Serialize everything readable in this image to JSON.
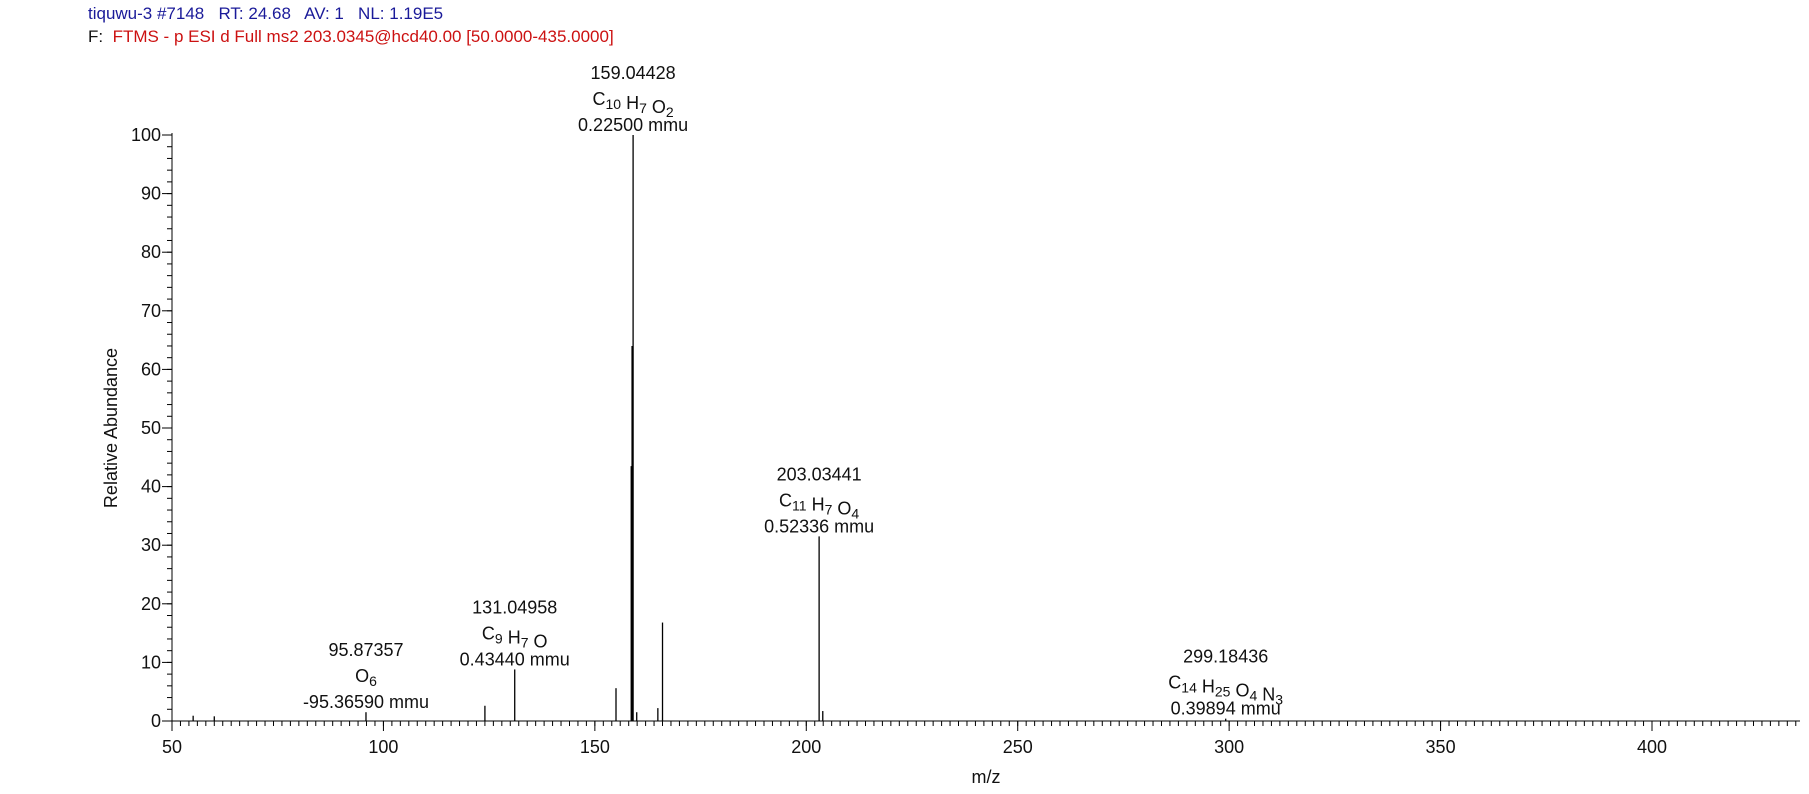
{
  "header": {
    "file_scan": "tiquwu-3 #7148",
    "rt_label": "RT:",
    "rt_value": "24.68",
    "av_label": "AV:",
    "av_value": "1",
    "nl_label": "NL:",
    "nl_value": "1.19E5",
    "filter_label": "F:",
    "filter_text": "FTMS - p ESI d Full ms2 203.0345@hcd40.00 [50.0000-435.0000]"
  },
  "colors": {
    "header_info": "#1a1a99",
    "filter": "#cc1111",
    "peaks": "#000000",
    "axes": "#000000"
  },
  "chart_data": {
    "type": "bar",
    "xlabel": "m/z",
    "ylabel": "Relative Abundance",
    "xlim": [
      50,
      435
    ],
    "ylim": [
      0,
      100
    ],
    "x_ticks": [
      50,
      100,
      150,
      200,
      250,
      300,
      350,
      400
    ],
    "y_ticks": [
      0,
      10,
      20,
      30,
      40,
      50,
      60,
      70,
      80,
      90,
      100
    ],
    "grid": false,
    "peaks": [
      {
        "mz": 55.0,
        "intensity": 0.9
      },
      {
        "mz": 60.0,
        "intensity": 0.8
      },
      {
        "mz": 95.87357,
        "intensity": 1.5,
        "annotated": true
      },
      {
        "mz": 124.0,
        "intensity": 2.6
      },
      {
        "mz": 131.04958,
        "intensity": 8.8,
        "annotated": true
      },
      {
        "mz": 155.0,
        "intensity": 5.6
      },
      {
        "mz": 158.6,
        "intensity": 43.5
      },
      {
        "mz": 158.8,
        "intensity": 64.0
      },
      {
        "mz": 159.04428,
        "intensity": 100,
        "annotated": true
      },
      {
        "mz": 159.9,
        "intensity": 1.5
      },
      {
        "mz": 164.9,
        "intensity": 2.2
      },
      {
        "mz": 166.0,
        "intensity": 16.8
      },
      {
        "mz": 203.03441,
        "intensity": 31.5,
        "annotated": true
      },
      {
        "mz": 203.9,
        "intensity": 1.7
      },
      {
        "mz": 299.18436,
        "intensity": 0.4,
        "annotated": true
      }
    ],
    "annotations": [
      {
        "mz": 159.04428,
        "label": "159.04428",
        "formula": [
          [
            "C",
            "10"
          ],
          [
            "H",
            "7"
          ],
          [
            "O",
            "2"
          ]
        ],
        "error": "0.22500 mmu"
      },
      {
        "mz": 203.03441,
        "label": "203.03441",
        "formula": [
          [
            "C",
            "11"
          ],
          [
            "H",
            "7"
          ],
          [
            "O",
            "4"
          ]
        ],
        "error": "0.52336 mmu"
      },
      {
        "mz": 131.04958,
        "label": "131.04958",
        "formula": [
          [
            "C",
            "9"
          ],
          [
            "H",
            "7"
          ],
          [
            "O",
            ""
          ]
        ],
        "error": "0.43440 mmu"
      },
      {
        "mz": 95.87357,
        "label": "95.87357",
        "formula": [
          [
            "O",
            "6"
          ]
        ],
        "error": "-95.36590 mmu"
      },
      {
        "mz": 299.18436,
        "label": "299.18436",
        "formula": [
          [
            "C",
            "14"
          ],
          [
            "H",
            "25"
          ],
          [
            "O",
            "4"
          ],
          [
            "N",
            "3"
          ]
        ],
        "error": "0.39894 mmu"
      }
    ]
  }
}
